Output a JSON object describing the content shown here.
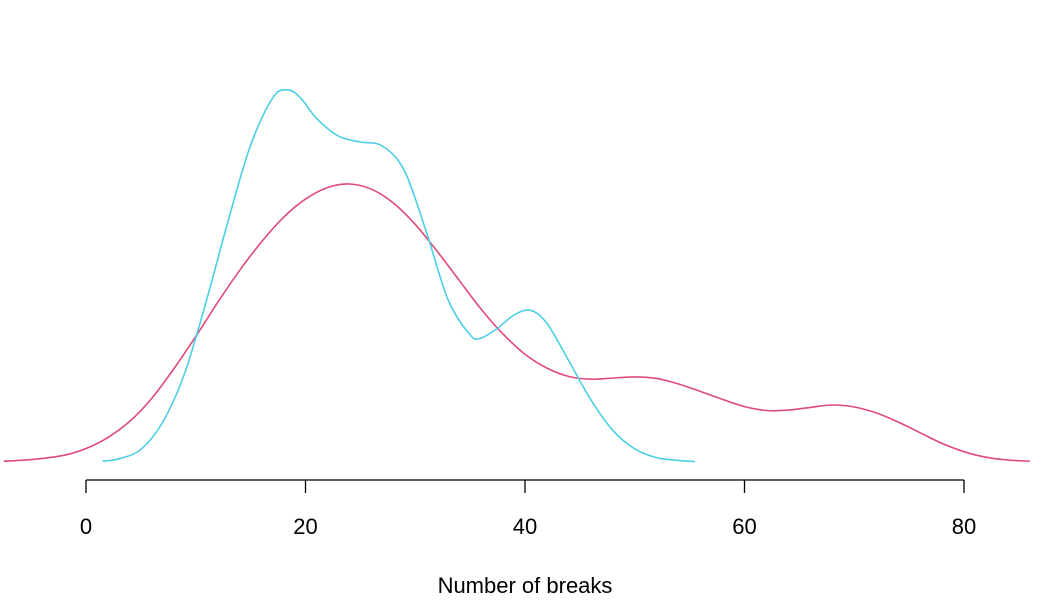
{
  "chart_data": {
    "type": "line",
    "title": "",
    "xlabel": "Number of breaks",
    "ylabel": "",
    "xlim": [
      -9,
      87
    ],
    "ylim": [
      0,
      1
    ],
    "x_ticks": [
      0,
      20,
      40,
      60,
      80
    ],
    "x_tick_labels": [
      "0",
      "20",
      "40",
      "60",
      "80"
    ],
    "y_axis_shown": false,
    "grid": false,
    "legend": "none",
    "series": [
      {
        "color": "#e04a78",
        "x": [
          -7.5,
          -5,
          -2,
          0,
          2,
          4,
          6,
          8,
          10,
          12,
          14,
          16,
          18,
          20,
          22,
          24,
          26,
          28,
          30,
          32,
          34,
          36,
          38,
          40,
          42,
          44,
          46,
          48,
          50,
          52,
          54,
          56,
          58,
          60,
          62,
          64,
          66,
          68,
          70,
          72,
          74,
          76,
          78,
          80,
          82,
          84,
          86
        ],
        "y": [
          0.002,
          0.006,
          0.017,
          0.034,
          0.062,
          0.103,
          0.161,
          0.235,
          0.317,
          0.403,
          0.484,
          0.556,
          0.618,
          0.664,
          0.693,
          0.702,
          0.689,
          0.654,
          0.6,
          0.532,
          0.459,
          0.386,
          0.323,
          0.272,
          0.237,
          0.216,
          0.209,
          0.212,
          0.215,
          0.211,
          0.197,
          0.178,
          0.158,
          0.14,
          0.13,
          0.131,
          0.138,
          0.144,
          0.139,
          0.124,
          0.101,
          0.074,
          0.047,
          0.026,
          0.012,
          0.005,
          0.002
        ]
      },
      {
        "color": "#4ccfe3",
        "x": [
          1.5,
          3,
          5,
          7,
          9,
          11,
          13,
          15,
          17,
          18.3,
          19.5,
          21,
          23,
          25,
          27,
          29,
          31,
          33,
          35,
          36,
          37.5,
          39,
          40.5,
          42,
          44,
          46,
          48,
          50,
          52,
          54,
          55.5
        ],
        "y": [
          0.002,
          0.008,
          0.032,
          0.101,
          0.225,
          0.41,
          0.614,
          0.8,
          0.919,
          0.94,
          0.921,
          0.868,
          0.823,
          0.808,
          0.798,
          0.736,
          0.582,
          0.409,
          0.321,
          0.313,
          0.338,
          0.371,
          0.383,
          0.35,
          0.255,
          0.157,
          0.08,
          0.033,
          0.011,
          0.004,
          0.001
        ]
      }
    ]
  }
}
